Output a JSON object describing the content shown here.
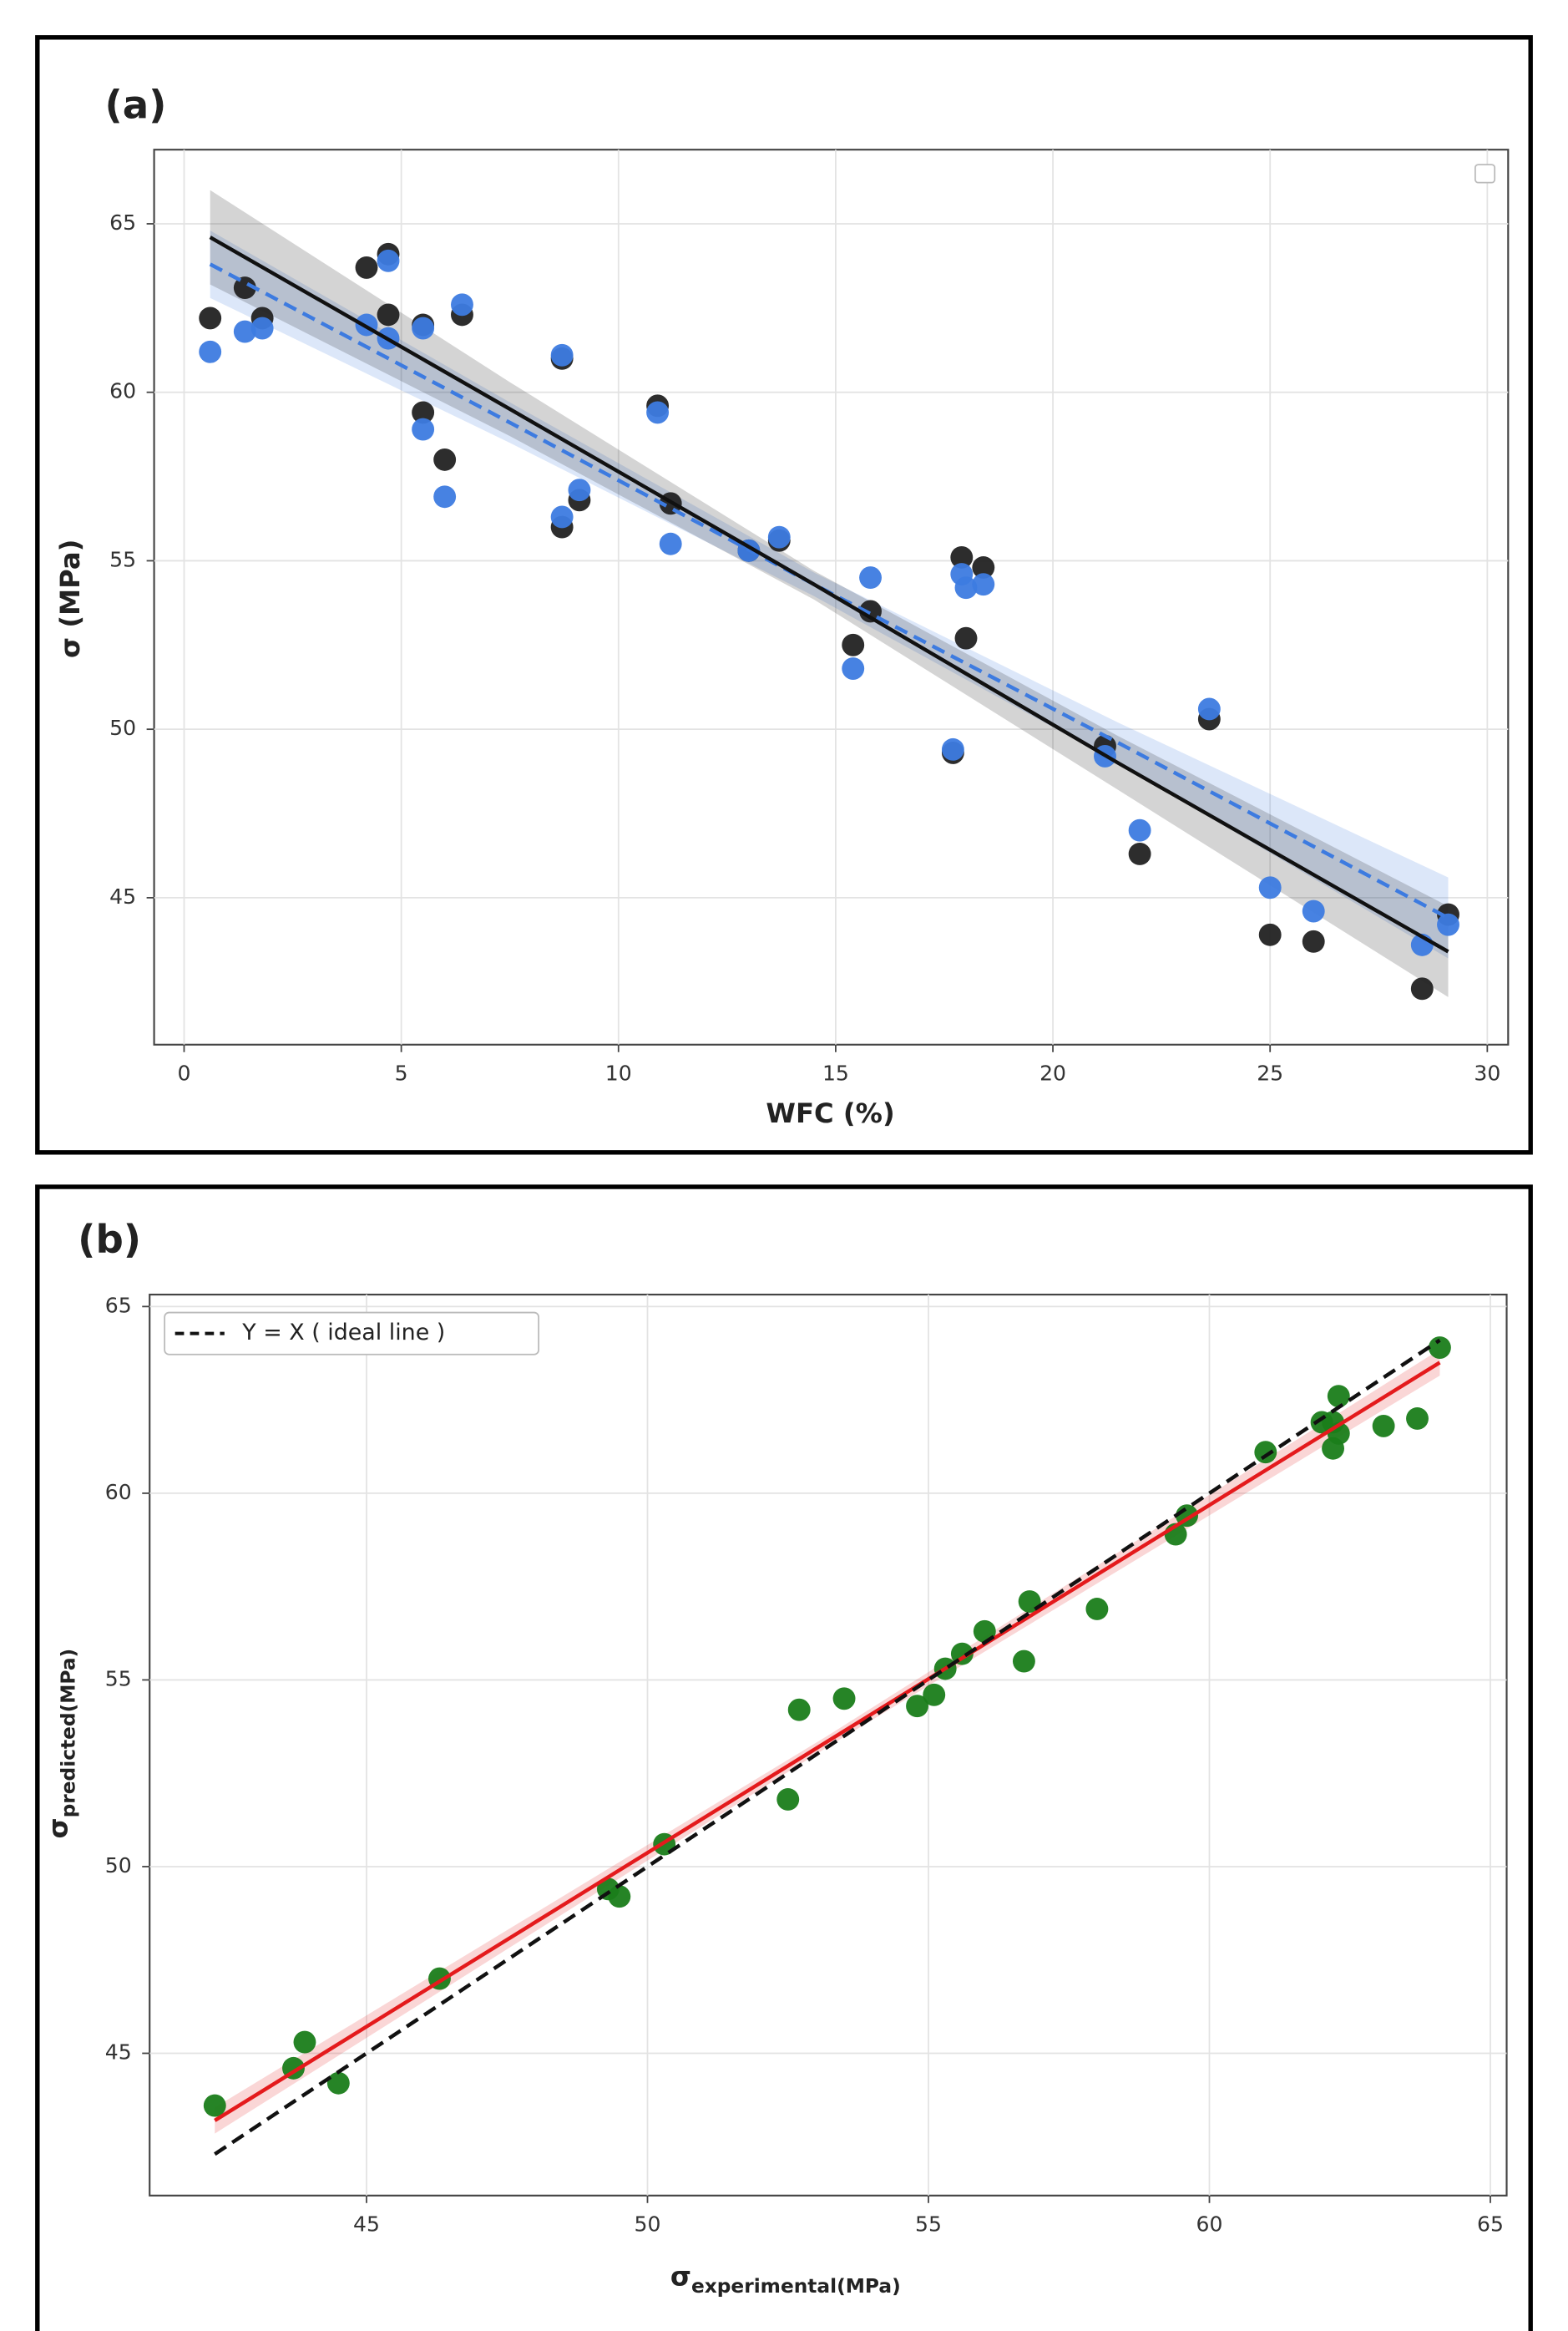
{
  "chart_data": [
    {
      "type": "scatter",
      "panel_label": "(a)",
      "x_label": {
        "text": "WFC (%)"
      },
      "y_label": {
        "text": "σ (MPa)"
      },
      "xlim": [
        -0.69,
        30.48
      ],
      "ylim": [
        40.64,
        67.2
      ],
      "xticks": [
        0,
        5,
        10,
        15,
        20,
        25,
        30
      ],
      "yticks": [
        45,
        50,
        55,
        60,
        65
      ],
      "grid": true,
      "x": [
        0.6,
        1.4,
        1.8,
        4.2,
        4.7,
        4.7,
        5.5,
        5.5,
        6.0,
        6.4,
        8.7,
        8.7,
        9.1,
        10.9,
        11.2,
        13.0,
        13.7,
        15.4,
        15.8,
        17.7,
        17.9,
        18.0,
        18.4,
        21.2,
        22.0,
        23.6,
        25.0,
        26.0,
        28.5,
        29.1
      ],
      "series": [
        {
          "color": "#222222",
          "values": [
            62.2,
            63.1,
            62.2,
            63.7,
            64.1,
            62.3,
            62.0,
            59.4,
            58.0,
            62.3,
            61.0,
            56.0,
            56.8,
            59.6,
            56.7,
            55.3,
            55.6,
            52.5,
            53.5,
            49.3,
            55.1,
            52.7,
            54.8,
            49.5,
            46.3,
            50.3,
            43.9,
            43.7,
            42.3,
            44.5
          ]
        },
        {
          "color": "#3d7be0",
          "values": [
            61.2,
            61.8,
            61.9,
            62.0,
            63.9,
            61.6,
            61.9,
            58.9,
            56.9,
            62.6,
            61.1,
            56.3,
            57.1,
            59.4,
            55.5,
            55.3,
            55.7,
            51.8,
            54.5,
            49.4,
            54.6,
            54.2,
            54.3,
            49.2,
            47.0,
            50.6,
            45.3,
            44.6,
            43.6,
            44.2
          ]
        }
      ],
      "fit_lines": [
        {
          "color": "#3d7be0",
          "dashed": true,
          "x": [
            0.6,
            7.5,
            14.5,
            21.5,
            29.1
          ],
          "values": [
            63.8,
            59.1,
            54.3,
            49.6,
            44.4
          ],
          "lower": [
            62.8,
            58.5,
            53.95,
            49.0,
            43.2
          ],
          "upper": [
            64.8,
            59.7,
            54.65,
            50.2,
            45.6
          ]
        },
        {
          "color": "#111111",
          "dashed": false,
          "x": [
            0.6,
            7.5,
            14.5,
            21.5,
            29.1
          ],
          "values": [
            64.6,
            59.5,
            54.3,
            49.0,
            43.4
          ],
          "lower": [
            63.2,
            58.7,
            53.85,
            48.2,
            42.05
          ],
          "upper": [
            66.0,
            60.3,
            54.7,
            49.8,
            44.75
          ]
        }
      ]
    },
    {
      "type": "scatter",
      "panel_label": "(b)",
      "x_label": {
        "text": "σ",
        "subscript": "experimental(MPa)"
      },
      "y_label": {
        "text": "σ",
        "subscript": "predicted(MPa)"
      },
      "xlim": [
        41.14,
        65.29
      ],
      "ylim": [
        41.19,
        65.32
      ],
      "xticks": [
        45,
        50,
        55,
        60,
        65
      ],
      "yticks": [
        45,
        50,
        55,
        60,
        65
      ],
      "grid": true,
      "x": [
        62.2,
        63.1,
        62.2,
        63.7,
        64.1,
        62.3,
        62.0,
        59.4,
        58.0,
        62.3,
        61.0,
        56.0,
        56.8,
        59.6,
        56.7,
        55.3,
        55.6,
        52.5,
        53.5,
        49.3,
        55.1,
        52.7,
        54.8,
        49.5,
        46.3,
        50.3,
        43.9,
        43.7,
        42.3,
        44.5
      ],
      "series": [
        {
          "color": "#1a7d1a",
          "values": [
            61.2,
            61.8,
            61.9,
            62.0,
            63.9,
            61.6,
            61.9,
            58.9,
            56.9,
            62.6,
            61.1,
            56.3,
            57.1,
            59.4,
            55.5,
            55.3,
            55.7,
            51.8,
            54.5,
            49.4,
            54.6,
            54.2,
            54.3,
            49.2,
            47.0,
            50.6,
            45.3,
            44.6,
            43.6,
            44.2
          ]
        }
      ],
      "fit_lines": [
        {
          "color": "#e41a1c",
          "dashed": false,
          "x": [
            42.3,
            53.2,
            64.1
          ],
          "values": [
            43.2,
            53.35,
            63.5
          ],
          "lower": [
            42.85,
            53.2,
            63.15
          ],
          "upper": [
            43.55,
            53.5,
            63.85
          ]
        },
        {
          "name": "Y = X ( ideal line )",
          "color": "#111111",
          "dashed": true,
          "x": [
            42.3,
            64.1
          ],
          "values": [
            42.3,
            64.1
          ]
        }
      ]
    }
  ]
}
